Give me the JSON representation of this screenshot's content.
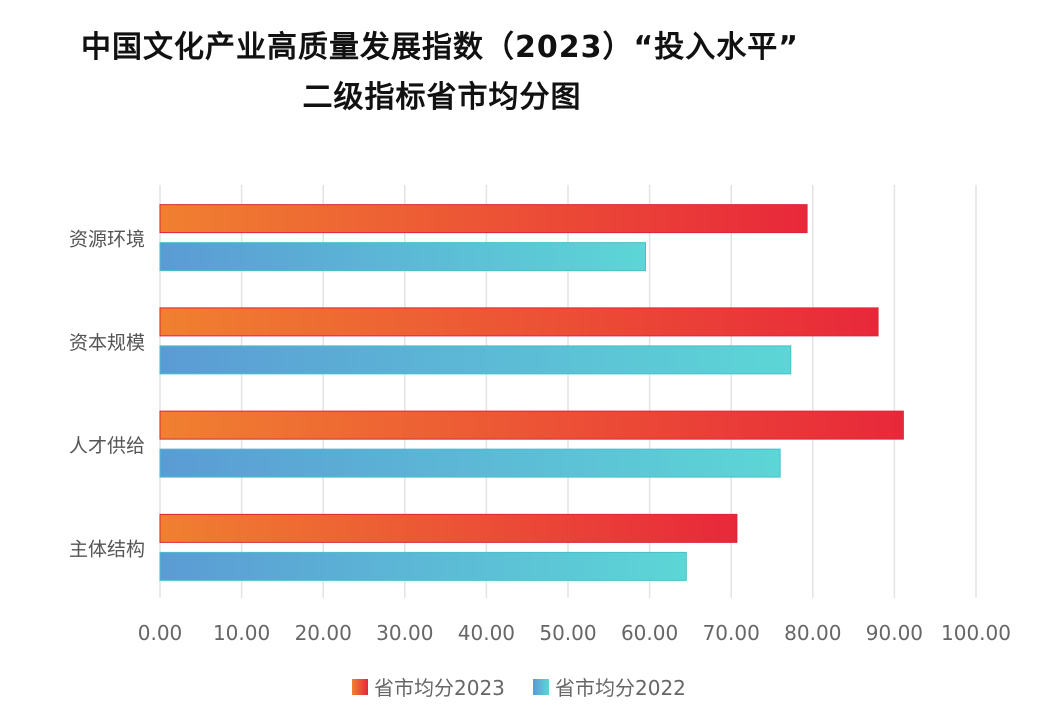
{
  "title_line1": "中国文化产业高质量发展指数（2023）“投入水平”",
  "title_line2": "二级指标省市均分图",
  "chart_data": {
    "type": "bar",
    "orientation": "horizontal",
    "categories": [
      "资源环境",
      "资本规模",
      "人才供给",
      "主体结构"
    ],
    "series": [
      {
        "name": "省市均分2023",
        "values": [
          79.3,
          88.0,
          91.1,
          70.7
        ],
        "colors": [
          "#f08030",
          "#e8283a"
        ]
      },
      {
        "name": "省市均分2022",
        "values": [
          59.5,
          77.3,
          76.0,
          64.5
        ],
        "colors": [
          "#5b9bd5",
          "#5cd6d6"
        ]
      }
    ],
    "xlim": [
      0,
      100
    ],
    "x_ticks": [
      "0.00",
      "10.00",
      "20.00",
      "30.00",
      "40.00",
      "50.00",
      "60.00",
      "70.00",
      "80.00",
      "90.00",
      "100.00"
    ],
    "grid": true,
    "legend": "bottom"
  }
}
